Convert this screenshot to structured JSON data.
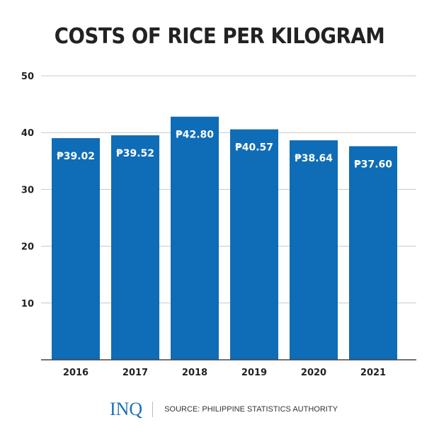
{
  "chart_data": {
    "type": "bar",
    "title": "COSTS OF RICE PER KILOGRAM",
    "categories": [
      "2016",
      "2017",
      "2018",
      "2019",
      "2020",
      "2021"
    ],
    "values": [
      39.02,
      39.52,
      42.8,
      40.57,
      38.64,
      37.6
    ],
    "data_labels": [
      "₱39.02",
      "₱39.52",
      "₱42.80",
      "₱40.57",
      "₱38.64",
      "₱37.60"
    ],
    "xlabel": "",
    "ylabel": "",
    "ylim": [
      0,
      50
    ],
    "yticks": [
      10,
      20,
      30,
      40,
      50
    ],
    "grid": true,
    "bar_color": "#0f6cb6"
  },
  "footer": {
    "logo": "INQ",
    "source": "SOURCE: PHILIPPINE STATISTICS AUTHORITY"
  }
}
